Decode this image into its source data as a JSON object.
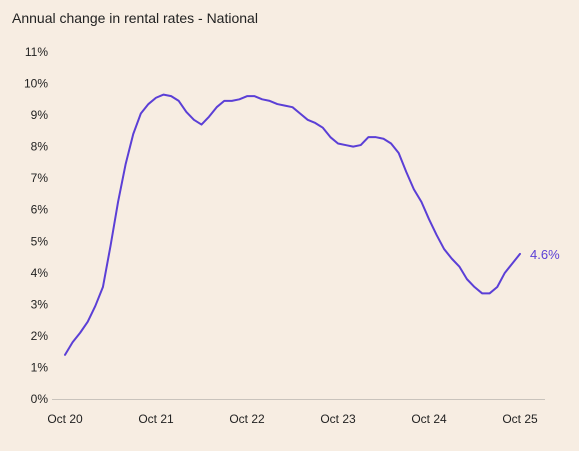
{
  "chart_data": {
    "type": "line",
    "title": "Annual change in rental rates - National",
    "xlabel": "",
    "ylabel": "",
    "x_tick_labels": [
      "Oct 20",
      "Oct 21",
      "Oct 22",
      "Oct 23",
      "Oct 24",
      "Oct 25"
    ],
    "y_tick_labels": [
      "0%",
      "1%",
      "2%",
      "3%",
      "4%",
      "5%",
      "6%",
      "7%",
      "8%",
      "9%",
      "10%",
      "11%"
    ],
    "ylim": [
      0,
      11
    ],
    "grid": false,
    "legend": "none",
    "colors": {
      "line": "#5b3fd6",
      "background": "#f7ede2",
      "axis": "#c9c3bc"
    },
    "end_label": "4.6%",
    "series": [
      {
        "x": [
          "Oct 20",
          "Nov 20",
          "Dec 20",
          "Jan 21",
          "Feb 21",
          "Mar 21",
          "Apr 21",
          "May 21",
          "Jun 21",
          "Jul 21",
          "Aug 21",
          "Sep 21",
          "Oct 21",
          "Nov 21",
          "Dec 21",
          "Jan 22",
          "Feb 22",
          "Mar 22",
          "Apr 22",
          "May 22",
          "Jun 22",
          "Jul 22",
          "Aug 22",
          "Sep 22",
          "Oct 22",
          "Nov 22",
          "Dec 22",
          "Jan 23",
          "Feb 23",
          "Mar 23",
          "Apr 23",
          "May 23",
          "Jun 23",
          "Jul 23",
          "Aug 23",
          "Sep 23",
          "Oct 23",
          "Nov 23",
          "Dec 23",
          "Jan 24",
          "Feb 24",
          "Mar 24",
          "Apr 24",
          "May 24",
          "Jun 24",
          "Jul 24",
          "Aug 24",
          "Sep 24",
          "Oct 24",
          "Nov 24",
          "Dec 24",
          "Jan 25",
          "Feb 25",
          "Mar 25",
          "Apr 25",
          "May 25",
          "Jun 25",
          "Jul 25",
          "Aug 25",
          "Sep 25",
          "Oct 25"
        ],
        "values": [
          1.4,
          1.8,
          2.1,
          2.45,
          2.95,
          3.55,
          4.85,
          6.25,
          7.45,
          8.4,
          9.05,
          9.35,
          9.55,
          9.65,
          9.6,
          9.45,
          9.1,
          8.85,
          8.7,
          8.95,
          9.25,
          9.45,
          9.45,
          9.5,
          9.6,
          9.6,
          9.5,
          9.45,
          9.35,
          9.3,
          9.25,
          9.05,
          8.85,
          8.75,
          8.6,
          8.3,
          8.1,
          8.05,
          8.0,
          8.05,
          8.3,
          8.3,
          8.25,
          8.1,
          7.8,
          7.2,
          6.65,
          6.25,
          5.7,
          5.2,
          4.75,
          4.45,
          4.2,
          3.8,
          3.55,
          3.35,
          3.35,
          3.55,
          4.0,
          4.3,
          4.6
        ]
      }
    ]
  }
}
